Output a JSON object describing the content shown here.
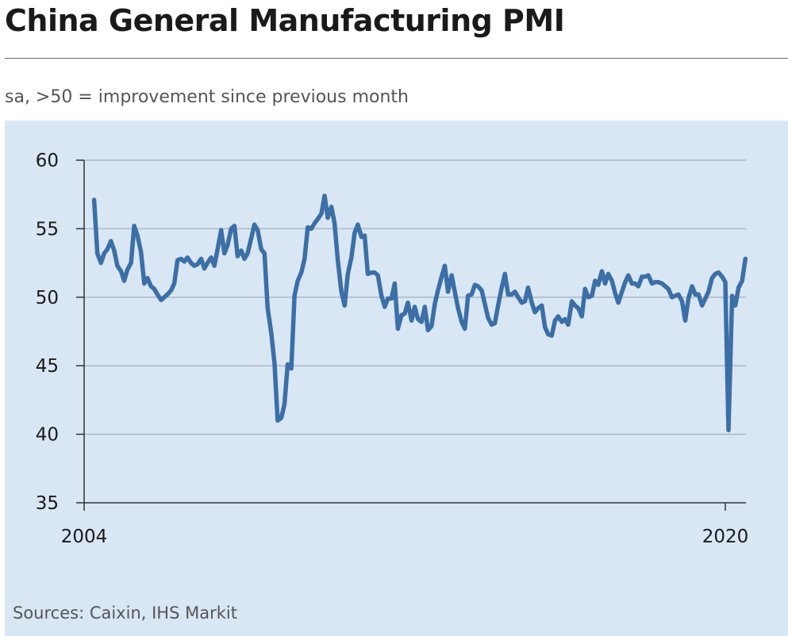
{
  "title": "China General Manufacturing PMI",
  "subtitle": "sa, >50 = improvement since previous month",
  "source": "Sources: Caixin, IHS Markit",
  "colors": {
    "line": "#3b6fa6",
    "panel": "#d9e6f4",
    "grid": "#aab8c8",
    "axis": "#333333"
  },
  "chart_data": {
    "type": "line",
    "title": "China General Manufacturing PMI",
    "ylim": [
      35,
      60
    ],
    "yticks": [
      35,
      40,
      45,
      50,
      55,
      60
    ],
    "xticks": [
      {
        "value": 2004.0,
        "label": "2004"
      },
      {
        "value": 2020.0,
        "label": "2020"
      }
    ],
    "grid": "horizontal",
    "series": [
      {
        "points": [
          [
            2004.25,
            57.1
          ],
          [
            2004.33,
            53.2
          ],
          [
            2004.42,
            52.5
          ],
          [
            2004.5,
            53.2
          ],
          [
            2004.58,
            53.5
          ],
          [
            2004.67,
            54.1
          ],
          [
            2004.75,
            53.4
          ],
          [
            2004.83,
            52.3
          ],
          [
            2004.92,
            51.9
          ],
          [
            2005.0,
            51.2
          ],
          [
            2005.08,
            52.0
          ],
          [
            2005.17,
            52.5
          ],
          [
            2005.25,
            55.2
          ],
          [
            2005.33,
            54.5
          ],
          [
            2005.42,
            53.3
          ],
          [
            2005.5,
            51.0
          ],
          [
            2005.58,
            51.4
          ],
          [
            2005.67,
            50.8
          ],
          [
            2005.75,
            50.6
          ],
          [
            2005.83,
            50.2
          ],
          [
            2005.92,
            49.8
          ],
          [
            2006.0,
            50.0
          ],
          [
            2006.08,
            50.2
          ],
          [
            2006.17,
            50.5
          ],
          [
            2006.25,
            51.0
          ],
          [
            2006.33,
            52.7
          ],
          [
            2006.42,
            52.8
          ],
          [
            2006.5,
            52.6
          ],
          [
            2006.58,
            52.9
          ],
          [
            2006.67,
            52.5
          ],
          [
            2006.75,
            52.3
          ],
          [
            2006.83,
            52.4
          ],
          [
            2006.92,
            52.8
          ],
          [
            2007.0,
            52.1
          ],
          [
            2007.08,
            52.5
          ],
          [
            2007.17,
            52.9
          ],
          [
            2007.25,
            52.3
          ],
          [
            2007.33,
            53.5
          ],
          [
            2007.42,
            54.9
          ],
          [
            2007.5,
            53.2
          ],
          [
            2007.58,
            53.8
          ],
          [
            2007.67,
            55.0
          ],
          [
            2007.75,
            55.2
          ],
          [
            2007.83,
            53.0
          ],
          [
            2007.92,
            53.4
          ],
          [
            2008.0,
            52.8
          ],
          [
            2008.08,
            53.2
          ],
          [
            2008.17,
            54.3
          ],
          [
            2008.25,
            55.3
          ],
          [
            2008.33,
            54.9
          ],
          [
            2008.42,
            53.5
          ],
          [
            2008.5,
            53.2
          ],
          [
            2008.58,
            49.2
          ],
          [
            2008.67,
            47.4
          ],
          [
            2008.75,
            45.2
          ],
          [
            2008.83,
            41.0
          ],
          [
            2008.92,
            41.2
          ],
          [
            2009.0,
            42.2
          ],
          [
            2009.08,
            45.1
          ],
          [
            2009.17,
            44.8
          ],
          [
            2009.25,
            50.1
          ],
          [
            2009.33,
            51.2
          ],
          [
            2009.42,
            51.8
          ],
          [
            2009.5,
            52.8
          ],
          [
            2009.58,
            55.1
          ],
          [
            2009.67,
            55.0
          ],
          [
            2009.75,
            55.4
          ],
          [
            2009.83,
            55.7
          ],
          [
            2009.92,
            56.1
          ],
          [
            2010.0,
            57.4
          ],
          [
            2010.08,
            55.8
          ],
          [
            2010.17,
            56.6
          ],
          [
            2010.25,
            55.4
          ],
          [
            2010.33,
            52.7
          ],
          [
            2010.42,
            50.4
          ],
          [
            2010.5,
            49.4
          ],
          [
            2010.58,
            51.7
          ],
          [
            2010.67,
            52.9
          ],
          [
            2010.75,
            54.7
          ],
          [
            2010.83,
            55.3
          ],
          [
            2010.92,
            54.4
          ],
          [
            2011.0,
            54.5
          ],
          [
            2011.08,
            51.7
          ],
          [
            2011.17,
            51.8
          ],
          [
            2011.25,
            51.8
          ],
          [
            2011.33,
            51.6
          ],
          [
            2011.42,
            50.1
          ],
          [
            2011.5,
            49.3
          ],
          [
            2011.58,
            49.9
          ],
          [
            2011.67,
            49.9
          ],
          [
            2011.75,
            51.0
          ],
          [
            2011.83,
            47.7
          ],
          [
            2011.92,
            48.7
          ],
          [
            2012.0,
            48.8
          ],
          [
            2012.08,
            49.6
          ],
          [
            2012.17,
            48.3
          ],
          [
            2012.25,
            49.3
          ],
          [
            2012.33,
            48.4
          ],
          [
            2012.42,
            48.2
          ],
          [
            2012.5,
            49.3
          ],
          [
            2012.58,
            47.6
          ],
          [
            2012.67,
            47.9
          ],
          [
            2012.75,
            49.5
          ],
          [
            2012.83,
            50.5
          ],
          [
            2012.92,
            51.5
          ],
          [
            2013.0,
            52.3
          ],
          [
            2013.08,
            50.4
          ],
          [
            2013.17,
            51.6
          ],
          [
            2013.25,
            50.4
          ],
          [
            2013.33,
            49.2
          ],
          [
            2013.42,
            48.2
          ],
          [
            2013.5,
            47.7
          ],
          [
            2013.58,
            50.1
          ],
          [
            2013.67,
            50.2
          ],
          [
            2013.75,
            50.9
          ],
          [
            2013.83,
            50.8
          ],
          [
            2013.92,
            50.5
          ],
          [
            2014.0,
            49.5
          ],
          [
            2014.08,
            48.5
          ],
          [
            2014.17,
            48.0
          ],
          [
            2014.25,
            48.1
          ],
          [
            2014.33,
            49.4
          ],
          [
            2014.42,
            50.7
          ],
          [
            2014.5,
            51.7
          ],
          [
            2014.58,
            50.2
          ],
          [
            2014.67,
            50.2
          ],
          [
            2014.75,
            50.4
          ],
          [
            2014.83,
            50.0
          ],
          [
            2014.92,
            49.6
          ],
          [
            2015.0,
            49.7
          ],
          [
            2015.08,
            50.7
          ],
          [
            2015.17,
            49.6
          ],
          [
            2015.25,
            48.9
          ],
          [
            2015.33,
            49.2
          ],
          [
            2015.42,
            49.4
          ],
          [
            2015.5,
            47.8
          ],
          [
            2015.58,
            47.3
          ],
          [
            2015.67,
            47.2
          ],
          [
            2015.75,
            48.3
          ],
          [
            2015.83,
            48.6
          ],
          [
            2015.92,
            48.2
          ],
          [
            2016.0,
            48.4
          ],
          [
            2016.08,
            48.0
          ],
          [
            2016.17,
            49.7
          ],
          [
            2016.25,
            49.4
          ],
          [
            2016.33,
            49.2
          ],
          [
            2016.42,
            48.6
          ],
          [
            2016.5,
            50.6
          ],
          [
            2016.58,
            50.0
          ],
          [
            2016.67,
            50.1
          ],
          [
            2016.75,
            51.2
          ],
          [
            2016.83,
            50.9
          ],
          [
            2016.92,
            51.9
          ],
          [
            2017.0,
            51.0
          ],
          [
            2017.08,
            51.7
          ],
          [
            2017.17,
            51.2
          ],
          [
            2017.25,
            50.3
          ],
          [
            2017.33,
            49.6
          ],
          [
            2017.42,
            50.4
          ],
          [
            2017.5,
            51.1
          ],
          [
            2017.58,
            51.6
          ],
          [
            2017.67,
            51.0
          ],
          [
            2017.75,
            51.0
          ],
          [
            2017.83,
            50.8
          ],
          [
            2017.92,
            51.5
          ],
          [
            2018.0,
            51.5
          ],
          [
            2018.08,
            51.6
          ],
          [
            2018.17,
            51.0
          ],
          [
            2018.25,
            51.1
          ],
          [
            2018.33,
            51.1
          ],
          [
            2018.42,
            51.0
          ],
          [
            2018.5,
            50.8
          ],
          [
            2018.58,
            50.6
          ],
          [
            2018.67,
            50.0
          ],
          [
            2018.75,
            50.1
          ],
          [
            2018.83,
            50.2
          ],
          [
            2018.92,
            49.7
          ],
          [
            2019.0,
            48.3
          ],
          [
            2019.08,
            49.9
          ],
          [
            2019.17,
            50.8
          ],
          [
            2019.25,
            50.2
          ],
          [
            2019.33,
            50.2
          ],
          [
            2019.42,
            49.4
          ],
          [
            2019.5,
            49.9
          ],
          [
            2019.58,
            50.4
          ],
          [
            2019.67,
            51.4
          ],
          [
            2019.75,
            51.7
          ],
          [
            2019.83,
            51.8
          ],
          [
            2019.92,
            51.5
          ],
          [
            2020.0,
            51.1
          ],
          [
            2020.08,
            40.3
          ],
          [
            2020.17,
            50.1
          ],
          [
            2020.25,
            49.4
          ],
          [
            2020.33,
            50.7
          ],
          [
            2020.42,
            51.2
          ],
          [
            2020.5,
            52.8
          ]
        ]
      }
    ]
  }
}
